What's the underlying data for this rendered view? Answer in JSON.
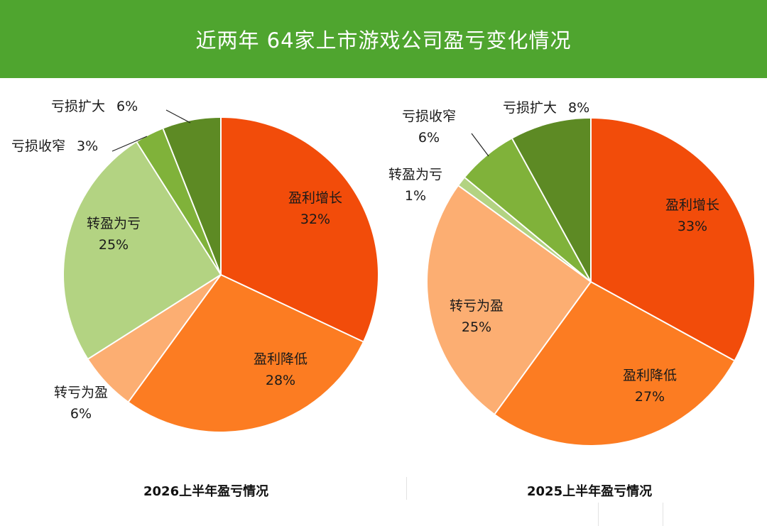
{
  "header": {
    "title": "近两年 64家上市游戏公司盈亏变化情况"
  },
  "colors": {
    "header_bg": "#4fa52f",
    "profit_up": "#f24c0a",
    "profit_down": "#fc7c22",
    "loss_to_profit": "#fcae72",
    "profit_to_loss": "#b3d382",
    "loss_narrow": "#80b23a",
    "loss_expand": "#5d8a24"
  },
  "chart_data": [
    {
      "type": "pie",
      "title": "2026上半年盈亏情况",
      "slices": [
        {
          "label": "盈利增长",
          "value": 32,
          "value_label": "32%",
          "color": "#f24c0a"
        },
        {
          "label": "盈利降低",
          "value": 28,
          "value_label": "28%",
          "color": "#fc7c22"
        },
        {
          "label": "转亏为盈",
          "value": 6,
          "value_label": "6%",
          "color": "#fcae72"
        },
        {
          "label": "转盈为亏",
          "value": 25,
          "value_label": "25%",
          "color": "#b3d382"
        },
        {
          "label": "亏损收窄",
          "value": 3,
          "value_label": "3%",
          "color": "#80b23a"
        },
        {
          "label": "亏损扩大",
          "value": 6,
          "value_label": "6%",
          "color": "#5d8a24"
        }
      ]
    },
    {
      "type": "pie",
      "title": "2025上半年盈亏情况",
      "slices": [
        {
          "label": "盈利增长",
          "value": 33,
          "value_label": "33%",
          "color": "#f24c0a"
        },
        {
          "label": "盈利降低",
          "value": 27,
          "value_label": "27%",
          "color": "#fc7c22"
        },
        {
          "label": "转亏为盈",
          "value": 25,
          "value_label": "25%",
          "color": "#fcae72"
        },
        {
          "label": "转盈为亏",
          "value": 1,
          "value_label": "1%",
          "color": "#b3d382"
        },
        {
          "label": "亏损收窄",
          "value": 6,
          "value_label": "6%",
          "color": "#80b23a"
        },
        {
          "label": "亏损扩大",
          "value": 8,
          "value_label": "8%",
          "color": "#5d8a24"
        }
      ]
    }
  ]
}
